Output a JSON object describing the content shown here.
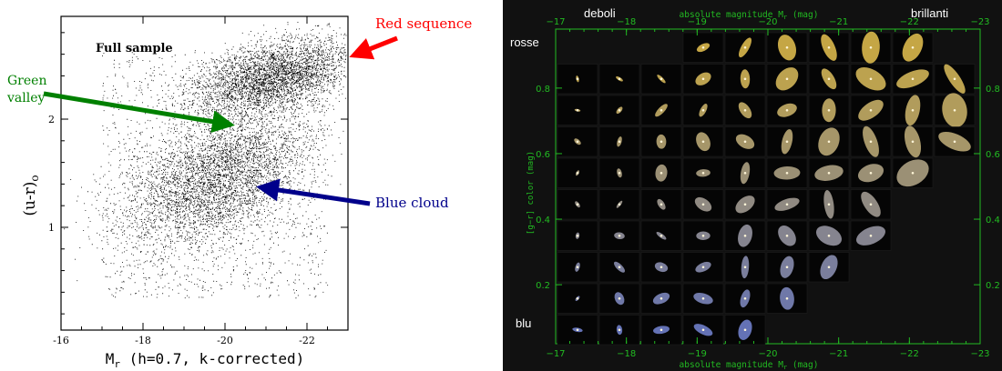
{
  "chart_data": [
    {
      "type": "scatter",
      "panel_label": "Full sample",
      "xlabel": "M",
      "xlabel_sub": "r",
      "xlabel_rest": " (h=0.7, k-corrected)",
      "ylabel": "(u-r)",
      "ylabel_sub": "o",
      "xlim": [
        -16,
        -23
      ],
      "ylim": [
        0.05,
        2.95
      ],
      "xticks": [
        -16,
        -18,
        -20,
        -22
      ],
      "yticks": [
        1,
        2
      ],
      "populations": [
        {
          "name": "Red sequence",
          "center_x": -21.2,
          "center_y": 2.4,
          "spread_x": 1.4,
          "spread_y": 0.16,
          "slope": -0.08
        },
        {
          "name": "Blue cloud",
          "center_x": -19.8,
          "center_y": 1.45,
          "spread_x": 1.6,
          "spread_y": 0.28,
          "slope": -0.12
        }
      ],
      "annotations": [
        {
          "id": "red",
          "text": "Red sequence",
          "color": "#ff0000"
        },
        {
          "id": "green",
          "text": "Green valley",
          "lines": [
            "Green",
            "valley"
          ],
          "color": "#008000"
        },
        {
          "id": "blue",
          "text": "Blue cloud",
          "color": "#00008b"
        }
      ]
    },
    {
      "type": "image-grid",
      "xlabel": "absolute magnitude M",
      "xlabel_sub": "r",
      "xlabel_unit": " (mag)",
      "ylabel": "[g−r] color (mag)",
      "xlim": [
        -17,
        -23
      ],
      "ylim": [
        0.02,
        0.98
      ],
      "xticks": [
        -17,
        -18,
        -19,
        -20,
        -21,
        -22,
        -23
      ],
      "yticks": [
        0.2,
        0.4,
        0.6,
        0.8
      ],
      "corner_labels": {
        "top_left": "deboli",
        "top_right": "brillanti",
        "upper_left": "rosse",
        "lower_left": "blu"
      },
      "axis_color": "#22bb22",
      "grid_rows": [
        {
          "color": 0.93,
          "from_col": 3,
          "to_col": 9
        },
        {
          "color": 0.85,
          "from_col": 0,
          "to_col": 10
        },
        {
          "color": 0.75,
          "from_col": 0,
          "to_col": 10
        },
        {
          "color": 0.65,
          "from_col": 0,
          "to_col": 10
        },
        {
          "color": 0.55,
          "from_col": 0,
          "to_col": 9
        },
        {
          "color": 0.45,
          "from_col": 0,
          "to_col": 8
        },
        {
          "color": 0.35,
          "from_col": 0,
          "to_col": 8
        },
        {
          "color": 0.25,
          "from_col": 0,
          "to_col": 7
        },
        {
          "color": 0.15,
          "from_col": 0,
          "to_col": 6
        },
        {
          "color": 0.05,
          "from_col": 0,
          "to_col": 5
        }
      ]
    }
  ]
}
